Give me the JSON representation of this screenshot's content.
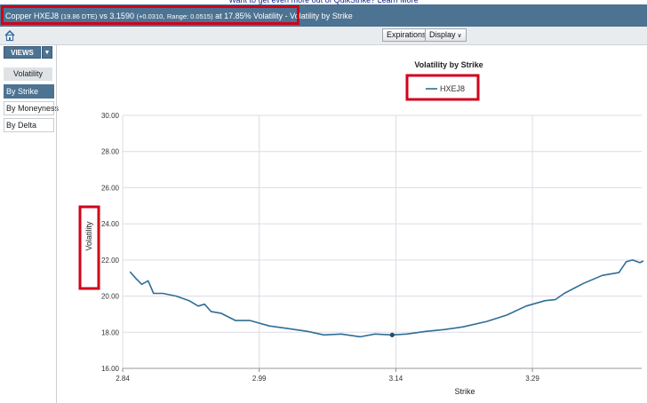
{
  "top_link": "Want to get even more out of QuikStrike? Learn More",
  "title": {
    "prefix": "Copper HXEJ8",
    "dte": "(19.86 DTE)",
    "vs": "vs 3.1590",
    "change": "(+0.0310,",
    "range": "Range: 0.0515)",
    "suffix": "at 17.85% Volatility - Volatility by Strike"
  },
  "toolbar": {
    "expirations_label": "Expirations",
    "display_label": "Display"
  },
  "icons": {
    "home": "home-icon",
    "dropdown": "chevron-down-icon"
  },
  "sidebar": {
    "views_label": "VIEWS",
    "section_label": "Volatility",
    "items": [
      {
        "label": "By Strike",
        "active": true
      },
      {
        "label": "By Moneyness",
        "active": false
      },
      {
        "label": "By Delta",
        "active": false
      }
    ]
  },
  "colors": {
    "title_bar": "#4d7393",
    "highlight": "#d0021b",
    "series": "#2f6d96"
  },
  "chart_data": {
    "type": "line",
    "title": "Volatility by Strike",
    "xlabel": "Strike",
    "ylabel": "Volatility",
    "legend_position": "top-center",
    "xlim": [
      2.84,
      3.41
    ],
    "ylim": [
      16.0,
      30.0
    ],
    "x_ticks": [
      {
        "value": 2.84,
        "label": "2.84"
      },
      {
        "value": 2.99,
        "label": "2.99"
      },
      {
        "value": 3.14,
        "label": "3.14"
      },
      {
        "value": 3.29,
        "label": "3.29"
      }
    ],
    "y_ticks": [
      {
        "value": 16,
        "label": "16.00"
      },
      {
        "value": 18,
        "label": "18.00"
      },
      {
        "value": 20,
        "label": "20.00"
      },
      {
        "value": 22,
        "label": "22.00"
      },
      {
        "value": 24,
        "label": "24.00"
      },
      {
        "value": 26,
        "label": "26.00"
      },
      {
        "value": 28,
        "label": "28.00"
      },
      {
        "value": 30,
        "label": "30.00"
      }
    ],
    "grid": true,
    "series": [
      {
        "name": "HXEJ8",
        "color": "#2f6d96",
        "points": [
          [
            2.848,
            21.35
          ],
          [
            2.855,
            20.95
          ],
          [
            2.861,
            20.65
          ],
          [
            2.868,
            20.85
          ],
          [
            2.874,
            20.15
          ],
          [
            2.884,
            20.15
          ],
          [
            2.899,
            20.0
          ],
          [
            2.913,
            19.75
          ],
          [
            2.923,
            19.45
          ],
          [
            2.93,
            19.55
          ],
          [
            2.937,
            19.15
          ],
          [
            2.948,
            19.05
          ],
          [
            2.964,
            18.65
          ],
          [
            2.98,
            18.65
          ],
          [
            3.001,
            18.35
          ],
          [
            3.022,
            18.2
          ],
          [
            3.043,
            18.05
          ],
          [
            3.061,
            17.85
          ],
          [
            3.08,
            17.9
          ],
          [
            3.101,
            17.75
          ],
          [
            3.117,
            17.9
          ],
          [
            3.136,
            17.85
          ],
          [
            3.152,
            17.9
          ],
          [
            3.173,
            18.05
          ],
          [
            3.194,
            18.15
          ],
          [
            3.214,
            18.3
          ],
          [
            3.24,
            18.6
          ],
          [
            3.262,
            18.95
          ],
          [
            3.283,
            19.45
          ],
          [
            3.304,
            19.75
          ],
          [
            3.315,
            19.8
          ],
          [
            3.325,
            20.15
          ],
          [
            3.346,
            20.7
          ],
          [
            3.367,
            21.15
          ],
          [
            3.385,
            21.3
          ],
          [
            3.393,
            21.9
          ],
          [
            3.4,
            22.0
          ],
          [
            3.408,
            21.85
          ],
          [
            3.412,
            21.95
          ]
        ],
        "marker": [
          3.136,
          17.85
        ]
      }
    ]
  }
}
